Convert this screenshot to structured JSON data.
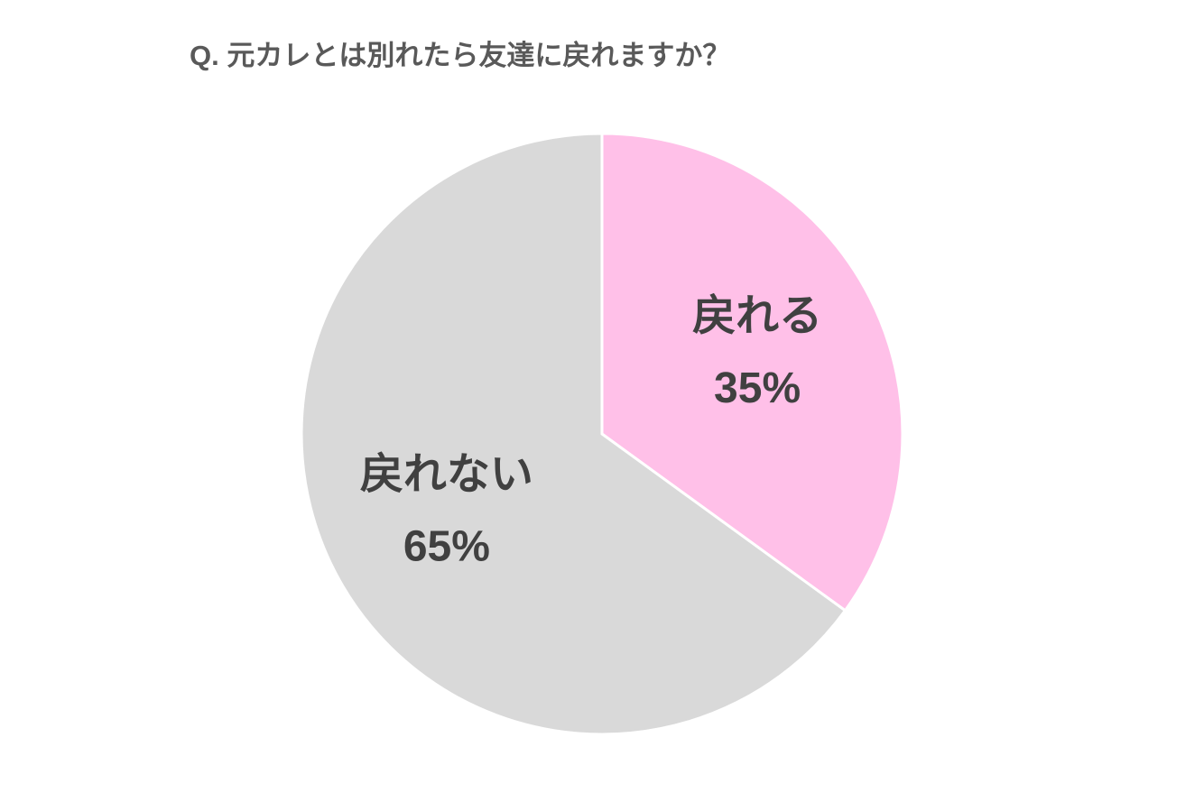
{
  "chart_data": {
    "type": "pie",
    "title": "Q. 元カレとは別れたら友達に戻れますか？",
    "categories": [
      "戻れる",
      "戻れない"
    ],
    "values": [
      35,
      65
    ],
    "value_labels": [
      "35%",
      "65%"
    ],
    "colors": [
      "#ffc0e8",
      "#d9d9d9"
    ]
  }
}
